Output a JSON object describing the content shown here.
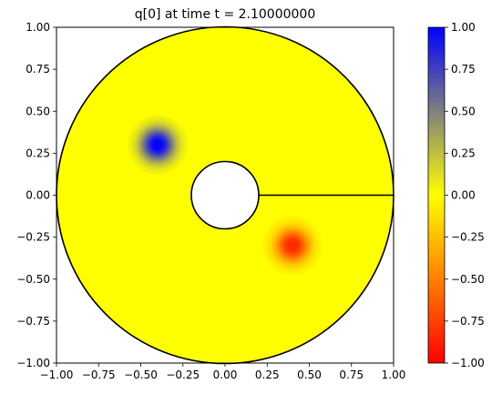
{
  "chart_data": {
    "type": "heatmap",
    "title": "q[0] at time t =     2.10000000",
    "xlabel": "",
    "ylabel": "",
    "xlim": [
      -1.0,
      1.0
    ],
    "ylim": [
      -1.0,
      1.0
    ],
    "x_ticks": [
      -1.0,
      -0.75,
      -0.5,
      -0.25,
      0.0,
      0.25,
      0.5,
      0.75,
      1.0
    ],
    "x_tick_labels": [
      "−1.00",
      "−0.75",
      "−0.50",
      "−0.25",
      "0.00",
      "0.25",
      "0.50",
      "0.75",
      "1.00"
    ],
    "y_ticks": [
      1.0,
      0.75,
      0.5,
      0.25,
      0.0,
      -0.25,
      -0.5,
      -0.75,
      -1.0
    ],
    "y_tick_labels": [
      "1.00",
      "0.75",
      "0.50",
      "0.25",
      "0.00",
      "−0.25",
      "−0.50",
      "−0.75",
      "−1.00"
    ],
    "domain": {
      "shape": "annulus",
      "outer_radius": 1.0,
      "inner_radius": 0.2,
      "branch_cut": {
        "from": [
          0.2,
          0.0
        ],
        "to": [
          1.0,
          0.0
        ]
      }
    },
    "blobs": [
      {
        "name": "positive",
        "center": [
          -0.4,
          0.3
        ],
        "peak": 1.0,
        "radius": 0.17
      },
      {
        "name": "negative",
        "center": [
          0.4,
          -0.3
        ],
        "peak": -0.85,
        "radius": 0.17
      }
    ],
    "background_value": 0.0,
    "colorbar": {
      "vmin": -1.0,
      "vmax": 1.0,
      "ticks": [
        1.0,
        0.75,
        0.5,
        0.25,
        0.0,
        -0.25,
        -0.5,
        -0.75,
        -1.0
      ],
      "tick_labels": [
        "1.00",
        "0.75",
        "0.50",
        "0.25",
        "0.00",
        "−0.25",
        "−0.50",
        "−0.75",
        "−1.00"
      ],
      "colors": {
        "low": "#ff0000",
        "mid": "#ffff00",
        "high": "#0000ff"
      }
    }
  }
}
